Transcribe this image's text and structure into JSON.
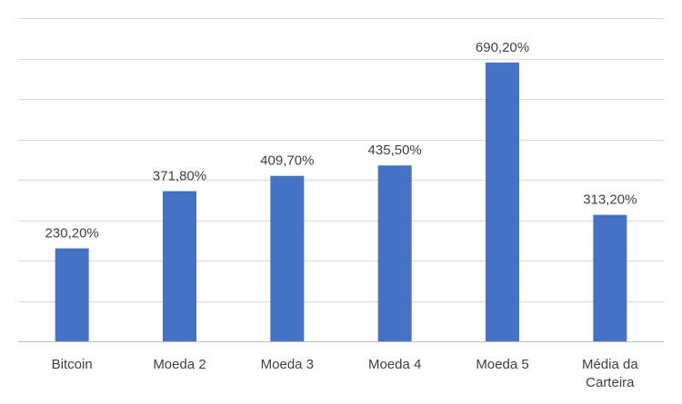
{
  "chart_data": {
    "type": "bar",
    "categories": [
      [
        "Bitcoin"
      ],
      [
        "Moeda 2"
      ],
      [
        "Moeda 3"
      ],
      [
        "Moeda 4"
      ],
      [
        "Moeda 5"
      ],
      [
        "Média da",
        "Carteira"
      ]
    ],
    "values": [
      230.2,
      371.8,
      409.7,
      435.5,
      690.2,
      313.2
    ],
    "data_labels": [
      "230,20%",
      "371,80%",
      "409,70%",
      "435,50%",
      "690,20%",
      "313,20%"
    ],
    "ylim": [
      0,
      800
    ],
    "gridline_step": 100,
    "grid": true,
    "legend": "none",
    "bar_color": "#4472c4"
  }
}
